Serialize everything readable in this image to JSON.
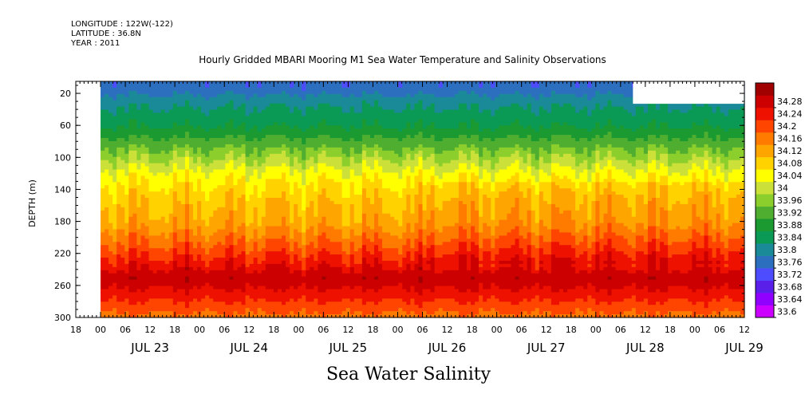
{
  "header": {
    "longitude": "LONGITUDE : 122W(-122)",
    "latitude": "LATITUDE : 36.8N",
    "year": "YEAR : 2011",
    "title": "Hourly Gridded MBARI Mooring M1 Sea Water Temperature and Salinity Observations"
  },
  "chart_data": {
    "type": "heatmap",
    "title": "Sea Water Salinity",
    "xlabel": "",
    "ylabel": "DEPTH (m)",
    "x_unit": "hours since Jul 22 2011 18:00",
    "xlim": [
      0,
      162
    ],
    "data_start_hour": 6,
    "ylim": [
      300,
      5
    ],
    "y_ticks": [
      20,
      60,
      100,
      140,
      180,
      220,
      260,
      300
    ],
    "y_tick_labels": [
      "20",
      "60",
      "100",
      "140",
      "180",
      "220",
      "260",
      "300"
    ],
    "x_hour_ticks": [
      {
        "h": 0,
        "label": "18"
      },
      {
        "h": 6,
        "label": "00"
      },
      {
        "h": 12,
        "label": "06"
      },
      {
        "h": 18,
        "label": "12"
      },
      {
        "h": 24,
        "label": "18"
      },
      {
        "h": 30,
        "label": "00"
      },
      {
        "h": 36,
        "label": "06"
      },
      {
        "h": 42,
        "label": "12"
      },
      {
        "h": 48,
        "label": "18"
      },
      {
        "h": 54,
        "label": "00"
      },
      {
        "h": 60,
        "label": "06"
      },
      {
        "h": 66,
        "label": "12"
      },
      {
        "h": 72,
        "label": "18"
      },
      {
        "h": 78,
        "label": "00"
      },
      {
        "h": 84,
        "label": "06"
      },
      {
        "h": 90,
        "label": "12"
      },
      {
        "h": 96,
        "label": "18"
      },
      {
        "h": 102,
        "label": "00"
      },
      {
        "h": 108,
        "label": "06"
      },
      {
        "h": 114,
        "label": "12"
      },
      {
        "h": 120,
        "label": "18"
      },
      {
        "h": 126,
        "label": "00"
      },
      {
        "h": 132,
        "label": "06"
      },
      {
        "h": 138,
        "label": "12"
      },
      {
        "h": 144,
        "label": "18"
      },
      {
        "h": 150,
        "label": "00"
      },
      {
        "h": 156,
        "label": "06"
      },
      {
        "h": 162,
        "label": "12"
      },
      {
        "h": 168,
        "label": "18"
      }
    ],
    "x_day_labels": [
      {
        "h": 18,
        "label": "JUL 23"
      },
      {
        "h": 42,
        "label": "JUL 24"
      },
      {
        "h": 66,
        "label": "JUL 25"
      },
      {
        "h": 90,
        "label": "JUL 26"
      },
      {
        "h": 114,
        "label": "JUL 27"
      },
      {
        "h": 138,
        "label": "JUL 28"
      },
      {
        "h": 162,
        "label": "JUL 29"
      }
    ],
    "colorbar": {
      "levels": [
        33.6,
        33.64,
        33.68,
        33.72,
        33.76,
        33.8,
        33.84,
        33.88,
        33.92,
        33.96,
        34,
        34.04,
        34.08,
        34.12,
        34.16,
        34.2,
        34.24,
        34.28
      ],
      "labels": [
        "33.6",
        "33.64",
        "33.68",
        "33.72",
        "33.76",
        "33.8",
        "33.84",
        "33.88",
        "33.92",
        "33.96",
        "34",
        "34.04",
        "34.08",
        "34.12",
        "34.16",
        "34.2",
        "34.24",
        "34.28"
      ],
      "colors": [
        "#cc00ff",
        "#8f00ff",
        "#5a1fe8",
        "#4d4dff",
        "#2d6fbf",
        "#1a8a99",
        "#0a9a55",
        "#1a9a30",
        "#4fae30",
        "#8ccf2c",
        "#cce03a",
        "#ffff00",
        "#ffd200",
        "#ffa500",
        "#ff7b00",
        "#ff4500",
        "#ee1100",
        "#cc0000",
        "#a10000"
      ]
    },
    "depth_profile": [
      {
        "depth": 10,
        "value": 33.73
      },
      {
        "depth": 30,
        "value": 33.79
      },
      {
        "depth": 60,
        "value": 33.84
      },
      {
        "depth": 90,
        "value": 33.93
      },
      {
        "depth": 120,
        "value": 34.02
      },
      {
        "depth": 150,
        "value": 34.07
      },
      {
        "depth": 180,
        "value": 34.1
      },
      {
        "depth": 210,
        "value": 34.17
      },
      {
        "depth": 230,
        "value": 34.22
      },
      {
        "depth": 250,
        "value": 34.27
      },
      {
        "depth": 270,
        "value": 34.22
      },
      {
        "depth": 300,
        "value": 34.14
      }
    ],
    "missing_region": {
      "x": [
        135,
        162
      ],
      "depth": [
        5,
        33
      ]
    }
  }
}
